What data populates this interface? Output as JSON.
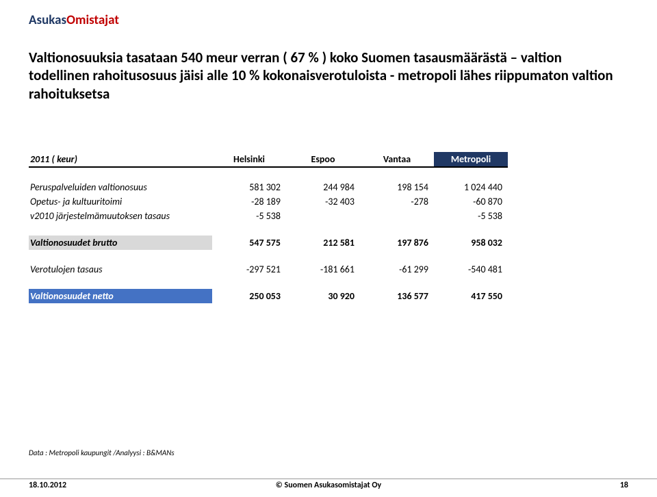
{
  "brand": {
    "part1": "Asukas",
    "part2": "Omistajat"
  },
  "subtitle": "Valtionosuuksia tasataan 540 meur verran ( 67 % ) koko Suomen tasausmäärästä – valtion todellinen rahoitusosuus jäisi alle 10 % kokonaisverotuloista  - metropoli lähes riippumaton valtion rahoituksetsa",
  "table": {
    "year_label": "2011 ( keur)",
    "columns": [
      "Helsinki",
      "Espoo",
      "Vantaa",
      "Metropoli"
    ],
    "rows": [
      {
        "label": "Peruspalveluiden valtionosuus",
        "style": "italic",
        "values": [
          "581 302",
          "244 984",
          "198 154",
          "1 024 440"
        ]
      },
      {
        "label": "Opetus- ja kultuuritoimi",
        "style": "italic",
        "values": [
          "-28 189",
          "-32 403",
          "-278",
          "-60 870"
        ]
      },
      {
        "label": "v2010 järjestelmämuutoksen tasaus",
        "style": "italic",
        "values": [
          "-5 538",
          "",
          "",
          "-5 538"
        ]
      }
    ],
    "brutto": {
      "label": "Valtionosuudet brutto",
      "values": [
        "547 575",
        "212 581",
        "197 876",
        "958 032"
      ]
    },
    "verotulojen": {
      "label": "Verotulojen tasaus",
      "values": [
        "-297 521",
        "-181 661",
        "-61 299",
        "-540 481"
      ]
    },
    "netto": {
      "label": "Valtionosuudet netto",
      "values": [
        "250 053",
        "30 920",
        "136 577",
        "417 550"
      ]
    }
  },
  "citation": "Data : Metropoli kaupungit /Analyysi : B&MANs",
  "footer": {
    "date": "18.10.2012",
    "center": "© Suomen Asukasomistajat Oy",
    "page": "18"
  },
  "colors": {
    "brand1": "#1f3864",
    "brand2": "#c00000",
    "metropoli_hdr_bg": "#203864",
    "brutto_bg": "#d9d9d9",
    "netto_bg": "#4472c4"
  }
}
